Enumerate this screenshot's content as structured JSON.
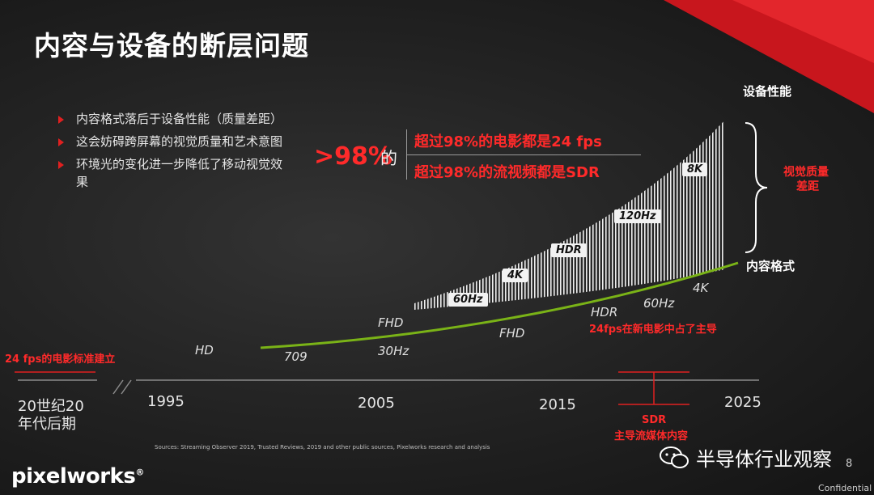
{
  "title": "内容与设备的断层问题",
  "bullets": [
    "内容格式落后于设备性能（质量差距）",
    "这会妨碍跨屏幕的视觉质量和艺术意图",
    "环境光的变化进一步降低了移动视觉效果"
  ],
  "stat": {
    "value": ">98%",
    "de": "的",
    "line1": "超过98%的电影都是24 fps",
    "line2": "超过98%的流视频都是SDR"
  },
  "device_label": "设备性能",
  "content_label": "内容格式",
  "gap_label_line1": "视觉质量",
  "gap_label_line2": "差距",
  "device_badges": [
    "60Hz",
    "4K",
    "HDR",
    "120Hz",
    "8K"
  ],
  "curve_labels": {
    "hd": "HD",
    "fhd_upper": "FHD",
    "c709": "709",
    "hz30": "30Hz",
    "fhd_lower": "FHD",
    "hdr": "HDR",
    "hz60": "60Hz",
    "k4": "4K"
  },
  "notes": {
    "fps24_standard": "24 fps的电影标准建立",
    "fps24_dominant": "24fps在新电影中占了主导",
    "sdr": "SDR",
    "sdr_desc": "主导流媒体内容"
  },
  "timeline": {
    "early_line1": "20世纪20",
    "early_line2": "年代后期",
    "years": [
      "1995",
      "2005",
      "2015",
      "2025"
    ]
  },
  "sources": "Sources: Streaming Observer 2019, Trusted Reviews, 2019 and other public sources, Pixelworks research and analysis",
  "logo": "pixelworks",
  "logo_mark": "®",
  "watermark": "半导体行业观察",
  "page_number": "8",
  "confidential": "Confidential",
  "colors": {
    "accent_red": "#e02020",
    "curve_green": "#7ab317",
    "hatch": "#ffffff"
  },
  "icons": {
    "bullet": "red-triangle-icon",
    "wechat": "wechat-icon",
    "corner": "red-corner-decoration"
  }
}
